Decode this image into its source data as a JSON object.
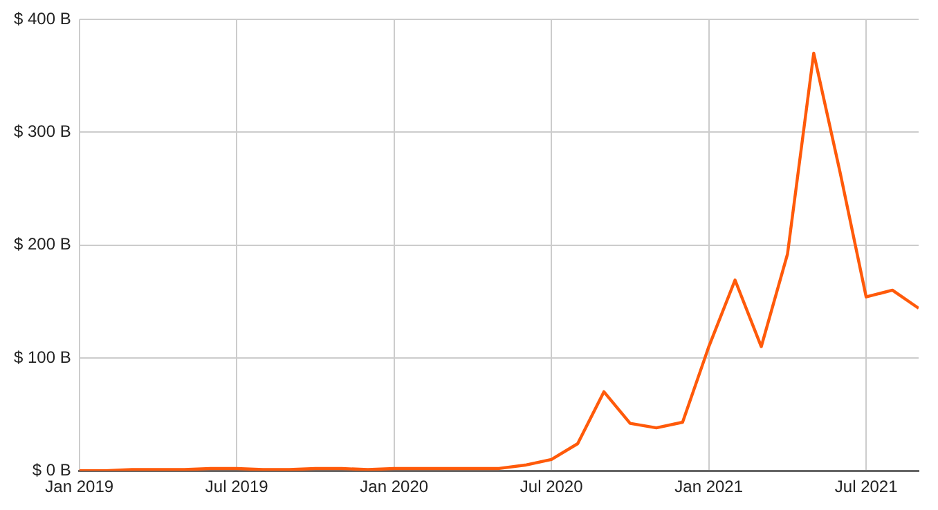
{
  "chart_data": {
    "type": "line",
    "x": [
      "2019-01",
      "2019-02",
      "2019-03",
      "2019-04",
      "2019-05",
      "2019-06",
      "2019-07",
      "2019-08",
      "2019-09",
      "2019-10",
      "2019-11",
      "2019-12",
      "2020-01",
      "2020-02",
      "2020-03",
      "2020-04",
      "2020-05",
      "2020-06",
      "2020-07",
      "2020-08",
      "2020-09",
      "2020-10",
      "2020-11",
      "2020-12",
      "2021-01",
      "2021-02",
      "2021-03",
      "2021-04",
      "2021-05",
      "2021-06",
      "2021-07",
      "2021-08",
      "2021-09"
    ],
    "series": [
      {
        "color": "#ff5a0a",
        "values": [
          0,
          0,
          1,
          1,
          1,
          2,
          2,
          1,
          1,
          2,
          2,
          1,
          2,
          2,
          2,
          2,
          2,
          5,
          10,
          24,
          70,
          42,
          38,
          43,
          110,
          169,
          110,
          192,
          370,
          265,
          154,
          160,
          144
        ]
      }
    ],
    "xlim": [
      "2019-01",
      "2021-09"
    ],
    "xticks": [
      {
        "value": "2019-01",
        "label": "Jan 2019"
      },
      {
        "value": "2019-07",
        "label": "Jul 2019"
      },
      {
        "value": "2020-01",
        "label": "Jan 2020"
      },
      {
        "value": "2020-07",
        "label": "Jul 2020"
      },
      {
        "value": "2021-01",
        "label": "Jan 2021"
      },
      {
        "value": "2021-07",
        "label": "Jul 2021"
      }
    ],
    "ylim": [
      0,
      400
    ],
    "yticks": [
      {
        "value": 0,
        "label": "$ 0 B"
      },
      {
        "value": 100,
        "label": "$ 100 B"
      },
      {
        "value": 200,
        "label": "$ 200 B"
      },
      {
        "value": 300,
        "label": "$ 300 B"
      },
      {
        "value": 400,
        "label": "$ 400 B"
      }
    ],
    "grid": true,
    "legend": false,
    "marker": "none",
    "line_style": "solid"
  }
}
